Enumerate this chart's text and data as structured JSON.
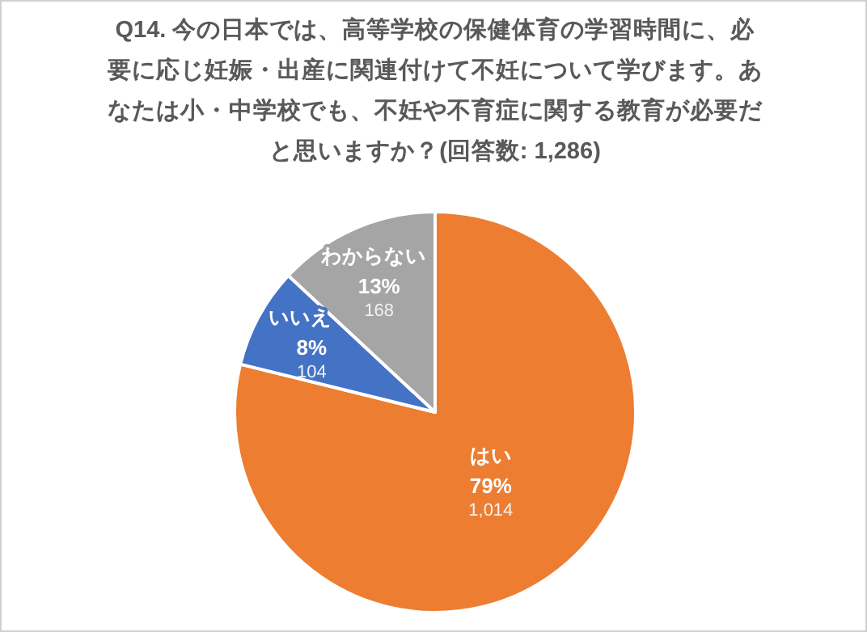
{
  "chart_data": {
    "type": "pie",
    "title": "Q14. 今の日本では、高等学校の保健体育の学習時間に、必要に応じ妊娠・出産に関連付けて不妊について学びます。あなたは小・中学校でも、不妊や不育症に関する教育が必要だと思いますか？(回答数: 1,286)",
    "categories": [
      "はい",
      "いいえ",
      "わからない"
    ],
    "values": [
      1014,
      104,
      168
    ],
    "colors": [
      "#ed7d31",
      "#4472c4",
      "#a5a5a5"
    ],
    "value_labels": [
      "79%\n1,014",
      "8%\n104",
      "13%\n168"
    ],
    "legend": false
  }
}
